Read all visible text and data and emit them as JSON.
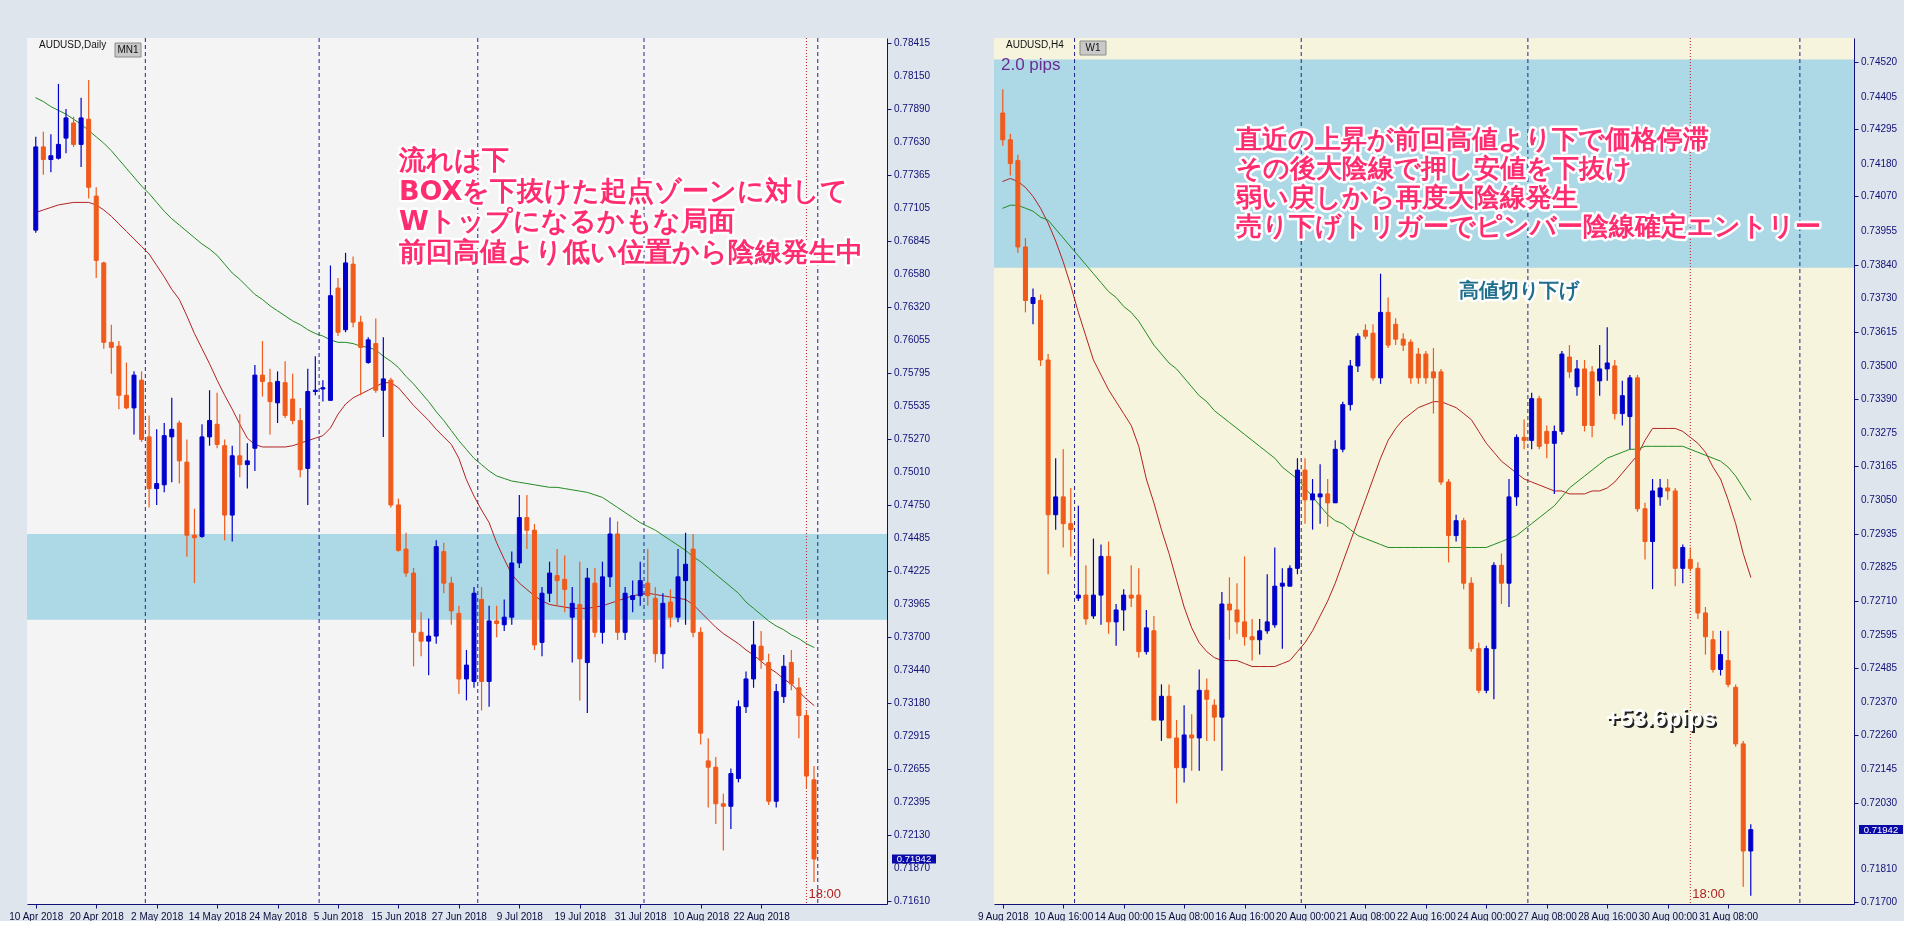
{
  "chart_data": [
    {
      "type": "candlestick",
      "title": "AUDUSD,Daily",
      "categories": [
        "10 Apr 2018",
        null,
        null,
        null,
        null,
        null,
        null,
        null,
        "20 Apr 2018",
        null,
        null,
        null,
        null,
        null,
        null,
        null,
        "2 May 2018",
        null,
        null,
        null,
        null,
        null,
        null,
        null,
        "14 May 2018",
        null,
        null,
        null,
        null,
        null,
        null,
        null,
        "24 May 2018",
        null,
        null,
        null,
        null,
        null,
        null,
        null,
        "5 Jun 2018",
        null,
        null,
        null,
        null,
        null,
        null,
        null,
        "15 Jun 2018",
        null,
        null,
        null,
        null,
        null,
        null,
        null,
        "27 Jun 2018",
        null,
        null,
        null,
        null,
        null,
        null,
        null,
        "9 Jul 2018",
        null,
        null,
        null,
        null,
        null,
        null,
        null,
        "19 Jul 2018",
        null,
        null,
        null,
        null,
        null,
        null,
        null,
        "31 Jul 2018",
        null,
        null,
        null,
        null,
        null,
        null,
        null,
        "10 Aug 2018",
        null,
        null,
        null,
        null,
        null,
        null,
        null,
        "22 Aug 2018",
        null,
        null,
        null,
        null,
        null,
        null,
        null
      ],
      "ohlc": [
        [
          0.7693,
          0.7767,
          0.7691,
          0.7759
        ],
        [
          0.7759,
          0.7771,
          0.7737,
          0.7749
        ],
        [
          0.7749,
          0.7769,
          0.7739,
          0.7752
        ],
        [
          0.775,
          0.7809,
          0.7749,
          0.7761
        ],
        [
          0.7766,
          0.7789,
          0.7754,
          0.7782
        ],
        [
          0.7778,
          0.7783,
          0.7759,
          0.7761
        ],
        [
          0.7761,
          0.7798,
          0.7743,
          0.7782
        ],
        [
          0.7781,
          0.7812,
          0.7718,
          0.7727
        ],
        [
          0.772,
          0.7727,
          0.7655,
          0.7669
        ],
        [
          0.7667,
          0.7668,
          0.7599,
          0.7604
        ],
        [
          0.7604,
          0.7618,
          0.7579,
          0.76
        ],
        [
          0.7601,
          0.7605,
          0.7551,
          0.7562
        ],
        [
          0.7562,
          0.7588,
          0.7551,
          0.7552
        ],
        [
          0.7552,
          0.7581,
          0.7531,
          0.7578
        ],
        [
          0.7574,
          0.7581,
          0.7525,
          0.7527
        ],
        [
          0.7529,
          0.7546,
          0.7473,
          0.7488
        ],
        [
          0.7488,
          0.7535,
          0.7475,
          0.7492
        ],
        [
          0.7491,
          0.754,
          0.7485,
          0.753
        ],
        [
          0.7529,
          0.756,
          0.7493,
          0.7535
        ],
        [
          0.754,
          0.7542,
          0.7492,
          0.751
        ],
        [
          0.7509,
          0.7527,
          0.7434,
          0.7451
        ],
        [
          0.7451,
          0.7472,
          0.7413,
          0.7449
        ],
        [
          0.745,
          0.7539,
          0.7449,
          0.7529
        ],
        [
          0.7529,
          0.7566,
          0.7522,
          0.7542
        ],
        [
          0.7539,
          0.7564,
          0.752,
          0.7523
        ],
        [
          0.7522,
          0.7527,
          0.7447,
          0.7467
        ],
        [
          0.7467,
          0.7522,
          0.7446,
          0.7514
        ],
        [
          0.7514,
          0.7547,
          0.7497,
          0.7507
        ],
        [
          0.7507,
          0.7524,
          0.7488,
          0.751
        ],
        [
          0.752,
          0.7586,
          0.7502,
          0.7578
        ],
        [
          0.7578,
          0.7605,
          0.7561,
          0.7573
        ],
        [
          0.7572,
          0.7583,
          0.7531,
          0.7557
        ],
        [
          0.7556,
          0.7581,
          0.754,
          0.7573
        ],
        [
          0.7572,
          0.7589,
          0.7544,
          0.7546
        ],
        [
          0.7559,
          0.7579,
          0.7539,
          0.7542
        ],
        [
          0.7542,
          0.7552,
          0.7497,
          0.7503
        ],
        [
          0.7504,
          0.7583,
          0.7475,
          0.7565
        ],
        [
          0.7565,
          0.7593,
          0.7562,
          0.7566
        ],
        [
          0.7567,
          0.7574,
          0.7557,
          0.7568
        ],
        [
          0.7558,
          0.7665,
          0.7558,
          0.7641
        ],
        [
          0.7647,
          0.7655,
          0.7609,
          0.7612
        ],
        [
          0.7614,
          0.7675,
          0.7612,
          0.7667
        ],
        [
          0.7666,
          0.7672,
          0.7616,
          0.762
        ],
        [
          0.762,
          0.7625,
          0.7562,
          0.76
        ],
        [
          0.7588,
          0.7608,
          0.7587,
          0.7606
        ],
        [
          0.7603,
          0.7623,
          0.7564,
          0.7566
        ],
        [
          0.7566,
          0.7608,
          0.7529,
          0.7575
        ],
        [
          0.7574,
          0.7576,
          0.7473,
          0.7475
        ],
        [
          0.7475,
          0.748,
          0.7438,
          0.7439
        ],
        [
          0.744,
          0.7453,
          0.7418,
          0.7421
        ],
        [
          0.7421,
          0.7425,
          0.7347,
          0.7374
        ],
        [
          0.7374,
          0.739,
          0.7355,
          0.7367
        ],
        [
          0.7367,
          0.7385,
          0.734,
          0.7371
        ],
        [
          0.7371,
          0.7447,
          0.7365,
          0.7442
        ],
        [
          0.7438,
          0.7445,
          0.7405,
          0.7413
        ],
        [
          0.7413,
          0.7418,
          0.738,
          0.7391
        ],
        [
          0.7389,
          0.7395,
          0.7325,
          0.7337
        ],
        [
          0.7337,
          0.736,
          0.732,
          0.7348
        ],
        [
          0.7335,
          0.741,
          0.733,
          0.7405
        ],
        [
          0.74,
          0.741,
          0.7312,
          0.7335
        ],
        [
          0.7335,
          0.7395,
          0.7315,
          0.7383
        ],
        [
          0.7383,
          0.7395,
          0.737,
          0.7381
        ],
        [
          0.738,
          0.74,
          0.7375,
          0.7386
        ],
        [
          0.7386,
          0.7438,
          0.738,
          0.7429
        ],
        [
          0.7429,
          0.7483,
          0.7425,
          0.7465
        ],
        [
          0.7465,
          0.7483,
          0.744,
          0.7455
        ],
        [
          0.7455,
          0.746,
          0.736,
          0.7364
        ],
        [
          0.7366,
          0.741,
          0.7355,
          0.7405
        ],
        [
          0.7405,
          0.743,
          0.7398,
          0.7421
        ],
        [
          0.7419,
          0.744,
          0.7395,
          0.7415
        ],
        [
          0.7416,
          0.7435,
          0.739,
          0.7408
        ],
        [
          0.7386,
          0.741,
          0.735,
          0.7397
        ],
        [
          0.7396,
          0.743,
          0.732,
          0.7353
        ],
        [
          0.735,
          0.7425,
          0.731,
          0.7417
        ],
        [
          0.7413,
          0.7425,
          0.737,
          0.7374
        ],
        [
          0.7374,
          0.743,
          0.7365,
          0.7418
        ],
        [
          0.7418,
          0.7465,
          0.741,
          0.7452
        ],
        [
          0.7452,
          0.7462,
          0.7368,
          0.7374
        ],
        [
          0.7374,
          0.741,
          0.7368,
          0.7405
        ],
        [
          0.74,
          0.7415,
          0.739,
          0.7403
        ],
        [
          0.7403,
          0.743,
          0.7395,
          0.7415
        ],
        [
          0.7413,
          0.744,
          0.7395,
          0.7403
        ],
        [
          0.7401,
          0.741,
          0.735,
          0.7357
        ],
        [
          0.7357,
          0.7405,
          0.7345,
          0.7397
        ],
        [
          0.7398,
          0.7408,
          0.7378,
          0.7386
        ],
        [
          0.7386,
          0.744,
          0.7382,
          0.7418
        ],
        [
          0.7415,
          0.7453,
          0.738,
          0.7428
        ],
        [
          0.744,
          0.7452,
          0.737,
          0.7374
        ],
        [
          0.7374,
          0.7378,
          0.7285,
          0.7294
        ],
        [
          0.7272,
          0.729,
          0.7235,
          0.7267
        ],
        [
          0.7267,
          0.7275,
          0.7222,
          0.7238
        ],
        [
          0.7238,
          0.7246,
          0.7201,
          0.7236
        ],
        [
          0.7236,
          0.7266,
          0.7218,
          0.7262
        ],
        [
          0.7258,
          0.732,
          0.7255,
          0.7315
        ],
        [
          0.7315,
          0.7343,
          0.731,
          0.7337
        ],
        [
          0.7337,
          0.7383,
          0.733,
          0.7364
        ],
        [
          0.7363,
          0.7375,
          0.7345,
          0.7352
        ],
        [
          0.735,
          0.7357,
          0.7237,
          0.724
        ],
        [
          0.724,
          0.7333,
          0.7235,
          0.7327
        ],
        [
          0.7323,
          0.7356,
          0.7318,
          0.7347
        ],
        [
          0.735,
          0.736,
          0.7328,
          0.7333
        ],
        [
          0.733,
          0.7338,
          0.729,
          0.7308
        ],
        [
          0.7308,
          0.7312,
          0.725,
          0.726
        ],
        [
          0.7257,
          0.7268,
          0.7176,
          0.71942
        ]
      ],
      "colors": [
        "#0000cd",
        "#f05a1a",
        "#0000cd",
        "#0000cd",
        "#0000cd",
        "#f05a1a",
        "#0000cd",
        "#f05a1a",
        "#f05a1a",
        "#f05a1a",
        "#f05a1a",
        "#f05a1a",
        "#f05a1a",
        "#0000cd",
        "#f05a1a",
        "#f05a1a",
        "#0000cd",
        "#0000cd",
        "#0000cd",
        "#f05a1a",
        "#f05a1a",
        "#f05a1a",
        "#0000cd",
        "#0000cd",
        "#f05a1a",
        "#f05a1a",
        "#0000cd",
        "#f05a1a",
        "#0000cd",
        "#0000cd",
        "#f05a1a",
        "#f05a1a",
        "#0000cd",
        "#f05a1a",
        "#f05a1a",
        "#f05a1a",
        "#0000cd",
        "#0000cd",
        "#0000cd",
        "#0000cd",
        "#f05a1a",
        "#0000cd",
        "#f05a1a",
        "#f05a1a",
        "#0000cd",
        "#f05a1a",
        "#0000cd",
        "#f05a1a",
        "#f05a1a",
        "#f05a1a",
        "#f05a1a",
        "#f05a1a",
        "#0000cd",
        "#0000cd",
        "#f05a1a",
        "#f05a1a",
        "#f05a1a",
        "#0000cd",
        "#0000cd",
        "#f05a1a",
        "#0000cd",
        "#f05a1a",
        "#0000cd",
        "#0000cd",
        "#0000cd",
        "#f05a1a",
        "#f05a1a",
        "#0000cd",
        "#0000cd",
        "#f05a1a",
        "#f05a1a",
        "#0000cd",
        "#f05a1a",
        "#0000cd",
        "#f05a1a",
        "#0000cd",
        "#0000cd",
        "#f05a1a",
        "#0000cd",
        "#0000cd",
        "#0000cd",
        "#f05a1a",
        "#f05a1a",
        "#0000cd",
        "#f05a1a",
        "#0000cd",
        "#0000cd",
        "#f05a1a",
        "#f05a1a",
        "#f05a1a",
        "#f05a1a",
        "#f05a1a",
        "#0000cd",
        "#0000cd",
        "#0000cd",
        "#0000cd",
        "#f05a1a",
        "#f05a1a",
        "#0000cd",
        "#0000cd",
        "#f05a1a",
        "#f05a1a",
        "#f05a1a",
        "#f05a1a"
      ],
      "series": [
        {
          "type": "line",
          "color": "#b22222",
          "values": [
            0.7707,
            0.7709,
            0.7711,
            0.7713,
            0.7714,
            0.7715,
            0.7715,
            0.7715,
            0.7713,
            0.7709,
            0.7704,
            0.7698,
            0.7692,
            0.7686,
            0.768,
            0.7674,
            0.7665,
            0.7656,
            0.7646,
            0.7638,
            0.7625,
            0.7611,
            0.7599,
            0.7587,
            0.7574,
            0.7562,
            0.7551,
            0.7539,
            0.7528,
            0.7523,
            0.7521,
            0.7521,
            0.7521,
            0.7521,
            0.7522,
            0.7524,
            0.7526,
            0.7528,
            0.753,
            0.7536,
            0.7547,
            0.7555,
            0.756,
            0.7563,
            0.7566,
            0.7569,
            0.7572,
            0.7572,
            0.7568,
            0.7561,
            0.7554,
            0.7548,
            0.7542,
            0.7535,
            0.7529,
            0.7523,
            0.7512,
            0.7495,
            0.7482,
            0.7471,
            0.7461,
            0.7445,
            0.7432,
            0.742,
            0.7413,
            0.7408,
            0.7403,
            0.7399,
            0.7396,
            0.7395,
            0.7394,
            0.7393,
            0.7393,
            0.7393,
            0.7394,
            0.7395,
            0.7397,
            0.7399,
            0.7401,
            0.7403,
            0.7404,
            0.7405,
            0.7404,
            0.7403,
            0.7402,
            0.7401,
            0.74,
            0.7396,
            0.739,
            0.7384,
            0.7378,
            0.7373,
            0.7369,
            0.7365,
            0.736,
            0.7356,
            0.7351,
            0.7346,
            0.7342,
            0.7337,
            0.7333,
            0.7327,
            0.7321,
            0.7316
          ]
        },
        {
          "type": "line",
          "color": "#228b22",
          "values": [
            0.7798,
            0.7795,
            0.7791,
            0.7788,
            0.7785,
            0.7781,
            0.7777,
            0.7772,
            0.7767,
            0.7762,
            0.7756,
            0.7749,
            0.7742,
            0.7735,
            0.7728,
            0.7722,
            0.7715,
            0.7708,
            0.7702,
            0.7697,
            0.7692,
            0.7687,
            0.7682,
            0.7678,
            0.7673,
            0.7666,
            0.7659,
            0.7654,
            0.7648,
            0.7642,
            0.7638,
            0.7633,
            0.7629,
            0.7625,
            0.7621,
            0.7618,
            0.7614,
            0.7611,
            0.7609,
            0.7606,
            0.7604,
            0.7604,
            0.7603,
            0.7601,
            0.76,
            0.7598,
            0.7593,
            0.7589,
            0.7584,
            0.7577,
            0.7571,
            0.7564,
            0.7557,
            0.7549,
            0.7542,
            0.7534,
            0.7526,
            0.7519,
            0.7512,
            0.7507,
            0.7502,
            0.7498,
            0.7496,
            0.7494,
            0.7493,
            0.7492,
            0.7491,
            0.749,
            0.7489,
            0.7489,
            0.7488,
            0.7487,
            0.7486,
            0.7485,
            0.7483,
            0.7481,
            0.7477,
            0.7473,
            0.7469,
            0.7465,
            0.7461,
            0.7458,
            0.7455,
            0.7451,
            0.7447,
            0.7443,
            0.7439,
            0.7434,
            0.743,
            0.7425,
            0.742,
            0.7415,
            0.741,
            0.7405,
            0.7398,
            0.7393,
            0.7388,
            0.7383,
            0.7379,
            0.7376,
            0.7372,
            0.7369,
            0.7365,
            0.7362
          ]
        }
      ],
      "ylim": [
        0.71585,
        0.78454
      ],
      "yticks": [
        {
          "value": 0.78415,
          "label": "0.78415"
        },
        {
          "value": 0.7815,
          "label": "0.78150"
        },
        {
          "value": 0.7789,
          "label": "0.77890"
        },
        {
          "value": 0.7763,
          "label": "0.77630"
        },
        {
          "value": 0.77365,
          "label": "0.77365"
        },
        {
          "value": 0.77105,
          "label": "0.77105"
        },
        {
          "value": 0.76845,
          "label": "0.76845"
        },
        {
          "value": 0.7658,
          "label": "0.76580"
        },
        {
          "value": 0.7632,
          "label": "0.76320"
        },
        {
          "value": 0.76055,
          "label": "0.76055"
        },
        {
          "value": 0.75795,
          "label": "0.75795"
        },
        {
          "value": 0.75535,
          "label": "0.75535"
        },
        {
          "value": 0.7527,
          "label": "0.75270"
        },
        {
          "value": 0.7501,
          "label": "0.75010"
        },
        {
          "value": 0.7475,
          "label": "0.74750"
        },
        {
          "value": 0.74485,
          "label": "0.74485"
        },
        {
          "value": 0.74225,
          "label": "0.74225"
        },
        {
          "value": 0.73965,
          "label": "0.73965"
        },
        {
          "value": 0.737,
          "label": "0.73700"
        },
        {
          "value": 0.7344,
          "label": "0.73440"
        },
        {
          "value": 0.7318,
          "label": "0.73180"
        },
        {
          "value": 0.72915,
          "label": "0.72915"
        },
        {
          "value": 0.72655,
          "label": "0.72655"
        },
        {
          "value": 0.72395,
          "label": "0.72395"
        },
        {
          "value": 0.7213,
          "label": "0.72130"
        },
        {
          "value": 0.7187,
          "label": "0.71870"
        },
        {
          "value": 0.7161,
          "label": "0.71610"
        }
      ],
      "bands": [
        {
          "axis": "y",
          "from": 0.7384,
          "to": 0.7452,
          "color": "#add8e6"
        }
      ],
      "annotations": [
        "MN1",
        "流れは下",
        "BOXを下抜けた起点ゾーンに対して",
        "Wトップになるかもな局面",
        "前回高値より低い位置から陰線発生中",
        "18:00",
        "0.71942"
      ]
    },
    {
      "type": "candlestick",
      "title": "AUDUSD,H4",
      "categories": [
        "9 Aug 2018",
        null,
        null,
        null,
        null,
        null,
        null,
        null,
        "10 Aug 16:00",
        null,
        null,
        null,
        null,
        null,
        null,
        null,
        "14 Aug 00:00",
        null,
        null,
        null,
        null,
        null,
        null,
        null,
        "15 Aug 08:00",
        null,
        null,
        null,
        null,
        null,
        null,
        null,
        "16 Aug 16:00",
        null,
        null,
        null,
        null,
        null,
        null,
        null,
        "20 Aug 00:00",
        null,
        null,
        null,
        null,
        null,
        null,
        null,
        "21 Aug 08:00",
        null,
        null,
        null,
        null,
        null,
        null,
        null,
        "22 Aug 16:00",
        null,
        null,
        null,
        null,
        null,
        null,
        null,
        "24 Aug 00:00",
        null,
        null,
        null,
        null,
        null,
        null,
        null,
        "27 Aug 08:00",
        null,
        null,
        null,
        null,
        null,
        null,
        null,
        "28 Aug 16:00",
        null,
        null,
        null,
        null,
        null,
        null,
        null,
        "30 Aug 00:00",
        null,
        null,
        null,
        null,
        null,
        null,
        null,
        "31 Aug 08:00",
        null,
        null,
        null
      ],
      "ohlc": [
        [
          0.7435,
          0.7443,
          0.7424,
          0.7426
        ],
        [
          0.7426,
          0.7428,
          0.7414,
          0.7418
        ],
        [
          0.7419,
          0.7421,
          0.7388,
          0.739
        ],
        [
          0.739,
          0.7393,
          0.7368,
          0.7372
        ],
        [
          0.7371,
          0.7376,
          0.7364,
          0.7373
        ],
        [
          0.7372,
          0.7374,
          0.735,
          0.7352
        ],
        [
          0.7352,
          0.7354,
          0.728,
          0.73
        ],
        [
          0.73,
          0.7319,
          0.7295,
          0.7306
        ],
        [
          0.7306,
          0.7322,
          0.7289,
          0.7297
        ],
        [
          0.7297,
          0.7309,
          0.7286,
          0.7295
        ],
        [
          0.7272,
          0.7303,
          0.7271,
          0.7273
        ],
        [
          0.7273,
          0.7283,
          0.7263,
          0.7265
        ],
        [
          0.7266,
          0.7292,
          0.7265,
          0.7273
        ],
        [
          0.7273,
          0.729,
          0.7263,
          0.7286
        ],
        [
          0.7286,
          0.7291,
          0.726,
          0.7264
        ],
        [
          0.7264,
          0.727,
          0.7256,
          0.7268
        ],
        [
          0.7268,
          0.7275,
          0.7261,
          0.7273
        ],
        [
          0.7273,
          0.7283,
          0.7269,
          0.7272
        ],
        [
          0.7273,
          0.7282,
          0.7252,
          0.7254
        ],
        [
          0.7254,
          0.7268,
          0.7253,
          0.7262
        ],
        [
          0.7261,
          0.7266,
          0.7231,
          0.7231
        ],
        [
          0.7231,
          0.7243,
          0.7224,
          0.7239
        ],
        [
          0.7239,
          0.7243,
          0.7225,
          0.7225
        ],
        [
          0.7225,
          0.7231,
          0.7203,
          0.7215
        ],
        [
          0.7215,
          0.7236,
          0.721,
          0.7226
        ],
        [
          0.7226,
          0.7233,
          0.7214,
          0.7225
        ],
        [
          0.7225,
          0.7248,
          0.7214,
          0.7241
        ],
        [
          0.7241,
          0.7245,
          0.7224,
          0.7238
        ],
        [
          0.7236,
          0.7238,
          0.7224,
          0.7232
        ],
        [
          0.7232,
          0.7274,
          0.7214,
          0.727
        ],
        [
          0.727,
          0.7279,
          0.7258,
          0.7268
        ],
        [
          0.7268,
          0.7277,
          0.726,
          0.7264
        ],
        [
          0.7264,
          0.7286,
          0.7256,
          0.7259
        ],
        [
          0.7259,
          0.7265,
          0.7251,
          0.7258
        ],
        [
          0.7258,
          0.7265,
          0.7253,
          0.7261
        ],
        [
          0.7261,
          0.728,
          0.726,
          0.7264
        ],
        [
          0.7263,
          0.7289,
          0.7262,
          0.7276
        ],
        [
          0.7276,
          0.7282,
          0.7255,
          0.7277
        ],
        [
          0.7276,
          0.7283,
          0.7276,
          0.7282
        ],
        [
          0.7282,
          0.7319,
          0.728,
          0.7315
        ],
        [
          0.7315,
          0.7319,
          0.7297,
          0.7305
        ],
        [
          0.7305,
          0.7312,
          0.7295,
          0.7307
        ],
        [
          0.7306,
          0.7317,
          0.7297,
          0.7307
        ],
        [
          0.7307,
          0.7312,
          0.7296,
          0.7304
        ],
        [
          0.7304,
          0.7325,
          0.7304,
          0.7322
        ],
        [
          0.7322,
          0.7338,
          0.7321,
          0.7337
        ],
        [
          0.7337,
          0.7352,
          0.7335,
          0.735
        ],
        [
          0.735,
          0.7361,
          0.7348,
          0.736
        ],
        [
          0.7362,
          0.7364,
          0.7359,
          0.736
        ],
        [
          0.7361,
          0.7364,
          0.7345,
          0.7346
        ],
        [
          0.7346,
          0.7381,
          0.7344,
          0.7368
        ],
        [
          0.7368,
          0.7373,
          0.7356,
          0.7357
        ],
        [
          0.7364,
          0.7366,
          0.7357,
          0.7359
        ],
        [
          0.7359,
          0.7361,
          0.7355,
          0.7357
        ],
        [
          0.7358,
          0.7359,
          0.7344,
          0.7346
        ],
        [
          0.7354,
          0.7356,
          0.7344,
          0.7346
        ],
        [
          0.7354,
          0.7355,
          0.7344,
          0.7346
        ],
        [
          0.7348,
          0.7356,
          0.7334,
          0.7346
        ],
        [
          0.7348,
          0.7349,
          0.731,
          0.7311
        ],
        [
          0.7311,
          0.7312,
          0.7284,
          0.7293
        ],
        [
          0.7293,
          0.73,
          0.7291,
          0.7298
        ],
        [
          0.7298,
          0.7299,
          0.7275,
          0.7277
        ],
        [
          0.7277,
          0.7279,
          0.7254,
          0.7255
        ],
        [
          0.7255,
          0.7257,
          0.724,
          0.7241
        ],
        [
          0.7241,
          0.7256,
          0.724,
          0.7255
        ],
        [
          0.7255,
          0.7284,
          0.7238,
          0.7283
        ],
        [
          0.7283,
          0.7287,
          0.727,
          0.7277
        ],
        [
          0.7277,
          0.7312,
          0.7269,
          0.7306
        ],
        [
          0.7306,
          0.7327,
          0.7303,
          0.7326
        ],
        [
          0.7326,
          0.7332,
          0.7322,
          0.7325
        ],
        [
          0.7325,
          0.7341,
          0.7322,
          0.7339
        ],
        [
          0.7339,
          0.734,
          0.7322,
          0.7323
        ],
        [
          0.7328,
          0.733,
          0.7319,
          0.7324
        ],
        [
          0.7324,
          0.733,
          0.7307,
          0.7328
        ],
        [
          0.7328,
          0.7355,
          0.7327,
          0.7354
        ],
        [
          0.7353,
          0.7357,
          0.7346,
          0.7348
        ],
        [
          0.7343,
          0.7352,
          0.734,
          0.7349
        ],
        [
          0.7349,
          0.7352,
          0.7328,
          0.733
        ],
        [
          0.7348,
          0.735,
          0.7326,
          0.733
        ],
        [
          0.7345,
          0.7357,
          0.734,
          0.7349
        ],
        [
          0.7349,
          0.7363,
          0.7345,
          0.7351
        ],
        [
          0.735,
          0.7352,
          0.7332,
          0.7334
        ],
        [
          0.7334,
          0.7345,
          0.733,
          0.734
        ],
        [
          0.7333,
          0.7347,
          0.7322,
          0.7346
        ],
        [
          0.7346,
          0.7347,
          0.7301,
          0.7302
        ],
        [
          0.7302,
          0.7304,
          0.7285,
          0.7291
        ],
        [
          0.7291,
          0.7312,
          0.7275,
          0.7308
        ],
        [
          0.7306,
          0.7312,
          0.7303,
          0.7309
        ],
        [
          0.7309,
          0.7312,
          0.7305,
          0.7308
        ],
        [
          0.7308,
          0.7309,
          0.7276,
          0.7282
        ],
        [
          0.7282,
          0.729,
          0.7277,
          0.7289
        ],
        [
          0.7285,
          0.7289,
          0.7281,
          0.7282
        ],
        [
          0.7282,
          0.7284,
          0.7265,
          0.7267
        ],
        [
          0.7267,
          0.7269,
          0.7253,
          0.7259
        ],
        [
          0.7258,
          0.7261,
          0.7247,
          0.7248
        ],
        [
          0.7248,
          0.7261,
          0.7246,
          0.7253
        ],
        [
          0.7251,
          0.7261,
          0.7242,
          0.7243
        ],
        [
          0.7242,
          0.7243,
          0.7222,
          0.7223
        ],
        [
          0.7223,
          0.7224,
          0.7175,
          0.7187
        ],
        [
          0.7187,
          0.7196,
          0.7172,
          0.71942
        ]
      ],
      "colors": [
        "#f05a1a",
        "#f05a1a",
        "#f05a1a",
        "#f05a1a",
        "#0000cd",
        "#f05a1a",
        "#f05a1a",
        "#0000cd",
        "#f05a1a",
        "#f05a1a",
        "#0000cd",
        "#f05a1a",
        "#0000cd",
        "#0000cd",
        "#f05a1a",
        "#0000cd",
        "#0000cd",
        "#f05a1a",
        "#f05a1a",
        "#0000cd",
        "#f05a1a",
        "#0000cd",
        "#f05a1a",
        "#f05a1a",
        "#0000cd",
        "#f05a1a",
        "#0000cd",
        "#f05a1a",
        "#f05a1a",
        "#0000cd",
        "#f05a1a",
        "#f05a1a",
        "#f05a1a",
        "#f05a1a",
        "#0000cd",
        "#0000cd",
        "#0000cd",
        "#0000cd",
        "#0000cd",
        "#0000cd",
        "#f05a1a",
        "#0000cd",
        "#0000cd",
        "#f05a1a",
        "#0000cd",
        "#0000cd",
        "#0000cd",
        "#0000cd",
        "#f05a1a",
        "#f05a1a",
        "#0000cd",
        "#f05a1a",
        "#f05a1a",
        "#f05a1a",
        "#f05a1a",
        "#f05a1a",
        "#f05a1a",
        "#f05a1a",
        "#f05a1a",
        "#f05a1a",
        "#0000cd",
        "#f05a1a",
        "#f05a1a",
        "#f05a1a",
        "#0000cd",
        "#0000cd",
        "#f05a1a",
        "#0000cd",
        "#0000cd",
        "#f05a1a",
        "#0000cd",
        "#f05a1a",
        "#f05a1a",
        "#0000cd",
        "#0000cd",
        "#f05a1a",
        "#0000cd",
        "#f05a1a",
        "#f05a1a",
        "#0000cd",
        "#0000cd",
        "#f05a1a",
        "#0000cd",
        "#0000cd",
        "#f05a1a",
        "#f05a1a",
        "#0000cd",
        "#0000cd",
        "#f05a1a",
        "#f05a1a",
        "#0000cd",
        "#f05a1a",
        "#f05a1a",
        "#f05a1a",
        "#f05a1a",
        "#0000cd",
        "#f05a1a",
        "#f05a1a",
        "#f05a1a",
        "#0000cd"
      ],
      "series": [
        {
          "type": "line",
          "color": "#b22222",
          "values": [
            0.7412,
            0.7413,
            0.7412,
            0.741,
            0.7407,
            0.7403,
            0.7398,
            0.7392,
            0.7385,
            0.7377,
            0.7368,
            0.736,
            0.7352,
            0.7347,
            0.7342,
            0.7338,
            0.7334,
            0.733,
            0.7323,
            0.7312,
            0.7304,
            0.7295,
            0.7287,
            0.7278,
            0.7269,
            0.7262,
            0.7257,
            0.7254,
            0.7252,
            0.7251,
            0.7251,
            0.7251,
            0.725,
            0.7249,
            0.7249,
            0.7249,
            0.7249,
            0.725,
            0.7251,
            0.7254,
            0.7257,
            0.7261,
            0.7266,
            0.7271,
            0.7277,
            0.7284,
            0.7291,
            0.7298,
            0.7305,
            0.7312,
            0.7319,
            0.7325,
            0.7329,
            0.7332,
            0.7334,
            0.7336,
            0.7337,
            0.7338,
            0.7338,
            0.7337,
            0.7336,
            0.7334,
            0.7332,
            0.7328,
            0.7324,
            0.7321,
            0.7318,
            0.7316,
            0.7314,
            0.7312,
            0.7311,
            0.731,
            0.7309,
            0.7308,
            0.7308,
            0.7307,
            0.7307,
            0.7307,
            0.7308,
            0.7308,
            0.7309,
            0.7311,
            0.7314,
            0.7317,
            0.732,
            0.7325,
            0.7329,
            0.7329,
            0.7329,
            0.7329,
            0.7328,
            0.7326,
            0.7324,
            0.7321,
            0.7316,
            0.7312,
            0.7305,
            0.7297,
            0.7287,
            0.7279
          ]
        },
        {
          "type": "line",
          "color": "#228b22",
          "values": [
            0.7403,
            0.7404,
            0.7404,
            0.7403,
            0.7402,
            0.74,
            0.7399,
            0.7396,
            0.7393,
            0.739,
            0.7387,
            0.7384,
            0.7381,
            0.7378,
            0.7375,
            0.7373,
            0.737,
            0.7368,
            0.7365,
            0.7361,
            0.7357,
            0.7354,
            0.7351,
            0.7349,
            0.7346,
            0.7343,
            0.734,
            0.7338,
            0.7335,
            0.7333,
            0.7331,
            0.7329,
            0.7327,
            0.7325,
            0.7323,
            0.7321,
            0.7319,
            0.7316,
            0.7314,
            0.7312,
            0.7309,
            0.7306,
            0.7303,
            0.73,
            0.7298,
            0.7297,
            0.7295,
            0.7293,
            0.7292,
            0.7291,
            0.729,
            0.7289,
            0.7289,
            0.7289,
            0.7289,
            0.7289,
            0.7289,
            0.7289,
            0.7289,
            0.7289,
            0.7289,
            0.7289,
            0.7289,
            0.7289,
            0.7289,
            0.729,
            0.7291,
            0.7292,
            0.7293,
            0.7295,
            0.7297,
            0.7299,
            0.7301,
            0.7303,
            0.7306,
            0.7309,
            0.7311,
            0.7313,
            0.7315,
            0.7317,
            0.7319,
            0.732,
            0.7321,
            0.7322,
            0.7322,
            0.7323,
            0.7323,
            0.7323,
            0.7323,
            0.7323,
            0.7323,
            0.7322,
            0.7321,
            0.732,
            0.7319,
            0.7318,
            0.7316,
            0.7313,
            0.7309,
            0.7305
          ]
        }
      ],
      "ylim": [
        0.71692,
        0.74602
      ],
      "yticks": [
        {
          "value": 0.7452,
          "label": "0.74520"
        },
        {
          "value": 0.74405,
          "label": "0.74405"
        },
        {
          "value": 0.74295,
          "label": "0.74295"
        },
        {
          "value": 0.7418,
          "label": "0.74180"
        },
        {
          "value": 0.7407,
          "label": "0.74070"
        },
        {
          "value": 0.73955,
          "label": "0.73955"
        },
        {
          "value": 0.7384,
          "label": "0.73840"
        },
        {
          "value": 0.7373,
          "label": "0.73730"
        },
        {
          "value": 0.73615,
          "label": "0.73615"
        },
        {
          "value": 0.735,
          "label": "0.73500"
        },
        {
          "value": 0.7339,
          "label": "0.73390"
        },
        {
          "value": 0.73275,
          "label": "0.73275"
        },
        {
          "value": 0.73165,
          "label": "0.73165"
        },
        {
          "value": 0.7305,
          "label": "0.73050"
        },
        {
          "value": 0.72935,
          "label": "0.72935"
        },
        {
          "value": 0.72825,
          "label": "0.72825"
        },
        {
          "value": 0.7271,
          "label": "0.72710"
        },
        {
          "value": 0.72595,
          "label": "0.72595"
        },
        {
          "value": 0.72485,
          "label": "0.72485"
        },
        {
          "value": 0.7237,
          "label": "0.72370"
        },
        {
          "value": 0.7226,
          "label": "0.72260"
        },
        {
          "value": 0.72145,
          "label": "0.72145"
        },
        {
          "value": 0.7203,
          "label": "0.72030"
        },
        {
          "value": 0.7181,
          "label": "0.71810"
        },
        {
          "value": 0.717,
          "label": "0.71700"
        }
      ],
      "bands": [
        {
          "axis": "y",
          "from": 0.7383,
          "to": 0.7453,
          "color": "#add8e6"
        }
      ],
      "annotations": [
        "W1",
        "2.0 pips",
        "直近の上昇が前回高値より下で価格停滞",
        "その後大陰線で押し安値を下抜け",
        "弱い戻しから再度大陰線発生",
        "売り下げトリガーでピンバー陰線確定エントリー",
        "高値切り下げ",
        "+53.6pips",
        "18:00",
        "0.71942"
      ]
    }
  ]
}
